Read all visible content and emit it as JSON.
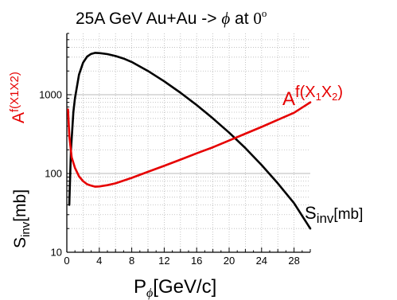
{
  "colors": {
    "black_series": "#000000",
    "red_series": "#e60000",
    "grid": "#b8b8b8"
  },
  "chart_data": {
    "type": "line",
    "title": {
      "main": "25A GeV  Au+Au -> ",
      "phi": "ϕ",
      "at": " at  ",
      "angle": "0",
      "angle_sup": "o"
    },
    "xlabel": {
      "main": "P",
      "sub": "ϕ",
      "unit": "[GeV/c]"
    },
    "ylabel_left": {
      "main": "S",
      "sub": "inv",
      "unit": "[mb]"
    },
    "ylabel_left_red": {
      "A": "A",
      "sup": "f(X1X2)"
    },
    "x_ticks": [
      "0",
      "4",
      "8",
      "12",
      "16",
      "20",
      "24",
      "28"
    ],
    "y_ticks": [
      "10",
      "100",
      "1000"
    ],
    "xlim": [
      0,
      30
    ],
    "ylim": [
      10,
      6000
    ],
    "yscale": "log",
    "grid": true,
    "series_labels": {
      "red": {
        "A": "A",
        "f": "f(X",
        "s1": "1",
        "x": "X",
        "s2": "2",
        "close": ")"
      },
      "black": {
        "S": "S",
        "sub": "inv",
        "unit": "[mb]"
      }
    },
    "series": [
      {
        "color": "#000000",
        "x": [
          0.3,
          0.5,
          0.8,
          1.0,
          1.5,
          2.0,
          2.5,
          3.0,
          3.5,
          4.0,
          5.0,
          6.0,
          7.0,
          8.0,
          10.0,
          12.0,
          14.0,
          16.0,
          18.0,
          20.0,
          22.0,
          24.0,
          26.0,
          28.0,
          30.0
        ],
        "y": [
          40,
          190,
          600,
          900,
          1800,
          2550,
          3050,
          3300,
          3400,
          3380,
          3280,
          3100,
          2880,
          2600,
          2000,
          1480,
          1060,
          740,
          500,
          330,
          210,
          128,
          75,
          42,
          20
        ]
      },
      {
        "color": "#e60000",
        "x": [
          0.15,
          0.3,
          0.6,
          1.0,
          1.5,
          2.0,
          2.5,
          3.0,
          3.5,
          4.0,
          5.0,
          6.0,
          8.0,
          10.0,
          12.0,
          14.0,
          16.0,
          18.0,
          20.0,
          22.0,
          24.0,
          26.0,
          28.0,
          30.0
        ],
        "y": [
          650,
          300,
          160,
          118,
          92,
          80,
          73,
          70,
          68,
          68.5,
          71,
          75,
          88,
          105,
          125,
          150,
          180,
          215,
          262,
          320,
          390,
          480,
          590,
          800
        ]
      }
    ]
  }
}
